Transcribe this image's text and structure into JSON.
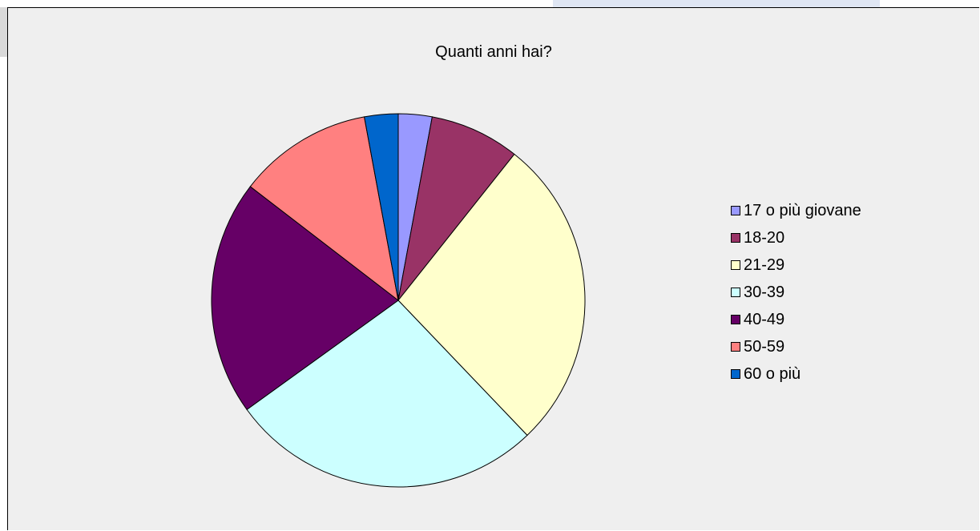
{
  "chart_data": {
    "type": "pie",
    "title": "Quanti anni hai?",
    "categories": [
      "17 o più giovane",
      "18-20",
      "21-29",
      "30-39",
      "40-49",
      "50-59",
      "60 o più"
    ],
    "values": [
      3,
      8,
      28,
      28,
      21,
      12,
      3
    ],
    "colors": [
      "#9999ff",
      "#993366",
      "#ffffcc",
      "#ccffff",
      "#660066",
      "#ff8080",
      "#0066cc"
    ],
    "legend_position": "right"
  }
}
